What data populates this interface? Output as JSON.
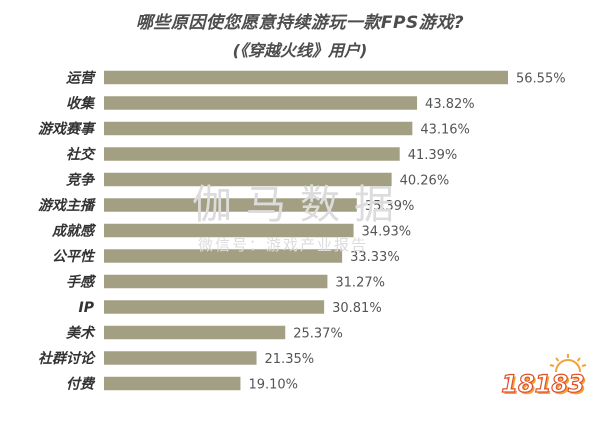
{
  "header": {
    "title": "哪些原因使您愿意持续游玩一款FPS游戏?",
    "subtitle": "(《穿越火线》用户)"
  },
  "watermark": {
    "brand": "伽马数据",
    "sub": "微信号：游戏产业报告"
  },
  "logo": {
    "text": "18183"
  },
  "colors": {
    "bar": "#a39f83",
    "label": "#333333",
    "value": "#555555"
  },
  "chart_data": {
    "type": "bar",
    "orientation": "horizontal",
    "title": "哪些原因使您愿意持续游玩一款FPS游戏?",
    "subtitle": "(《穿越火线》用户)",
    "categories": [
      "运营",
      "收集",
      "游戏赛事",
      "社交",
      "竞争",
      "游戏主播",
      "成就感",
      "公平性",
      "手感",
      "IP",
      "美术",
      "社群讨论",
      "付费"
    ],
    "values": [
      56.55,
      43.82,
      43.16,
      41.39,
      40.26,
      35.39,
      34.93,
      33.33,
      31.27,
      30.81,
      25.37,
      21.35,
      19.1
    ],
    "value_labels": [
      "56.55%",
      "43.82%",
      "43.16%",
      "41.39%",
      "40.26%",
      "35.39%",
      "34.93%",
      "33.33%",
      "31.27%",
      "30.81%",
      "25.37%",
      "21.35%",
      "19.10%"
    ],
    "xlim": [
      0,
      60
    ],
    "grid": false,
    "legend": "none"
  }
}
